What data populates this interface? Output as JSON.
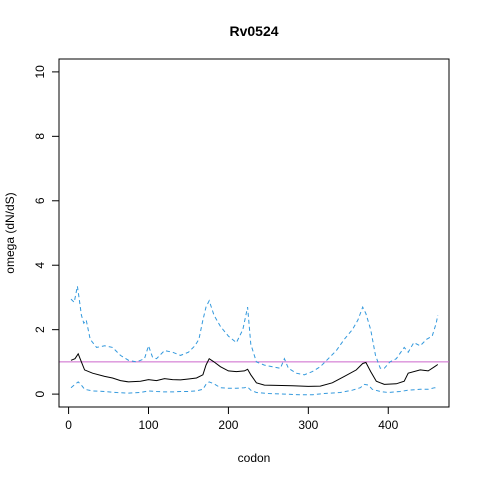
{
  "chart_data": {
    "type": "line",
    "title": "Rv0524",
    "xlabel": "codon",
    "ylabel": "omega (dN/dS)",
    "xlim": [
      -12,
      476
    ],
    "ylim": [
      -0.4,
      10.4
    ],
    "x_ticks": [
      0,
      100,
      200,
      300,
      400
    ],
    "y_ticks": [
      0,
      2,
      4,
      6,
      8,
      10
    ],
    "grid": false,
    "reference_line": {
      "y": 1,
      "color": "#cc66cc"
    },
    "series": [
      {
        "role": "omega",
        "color": "#000000",
        "dash": "solid",
        "points": [
          [
            3,
            1.05
          ],
          [
            8,
            1.1
          ],
          [
            12,
            1.25
          ],
          [
            16,
            1.0
          ],
          [
            20,
            0.75
          ],
          [
            30,
            0.65
          ],
          [
            45,
            0.55
          ],
          [
            55,
            0.5
          ],
          [
            65,
            0.42
          ],
          [
            75,
            0.38
          ],
          [
            90,
            0.4
          ],
          [
            100,
            0.45
          ],
          [
            110,
            0.42
          ],
          [
            120,
            0.48
          ],
          [
            130,
            0.45
          ],
          [
            140,
            0.44
          ],
          [
            150,
            0.47
          ],
          [
            160,
            0.5
          ],
          [
            168,
            0.6
          ],
          [
            172,
            0.9
          ],
          [
            176,
            1.1
          ],
          [
            182,
            1.0
          ],
          [
            190,
            0.85
          ],
          [
            200,
            0.72
          ],
          [
            210,
            0.7
          ],
          [
            220,
            0.72
          ],
          [
            224,
            0.77
          ],
          [
            228,
            0.6
          ],
          [
            235,
            0.35
          ],
          [
            245,
            0.28
          ],
          [
            260,
            0.27
          ],
          [
            280,
            0.26
          ],
          [
            300,
            0.24
          ],
          [
            315,
            0.25
          ],
          [
            330,
            0.35
          ],
          [
            345,
            0.55
          ],
          [
            360,
            0.75
          ],
          [
            368,
            0.95
          ],
          [
            372,
            0.98
          ],
          [
            378,
            0.7
          ],
          [
            385,
            0.4
          ],
          [
            395,
            0.3
          ],
          [
            410,
            0.32
          ],
          [
            420,
            0.4
          ],
          [
            425,
            0.65
          ],
          [
            440,
            0.75
          ],
          [
            450,
            0.72
          ],
          [
            458,
            0.85
          ],
          [
            462,
            0.92
          ]
        ]
      },
      {
        "role": "upper_bound",
        "color": "#3399dd",
        "dash": "dashed",
        "points": [
          [
            3,
            2.95
          ],
          [
            7,
            2.85
          ],
          [
            9,
            3.1
          ],
          [
            11,
            3.35
          ],
          [
            13,
            3.0
          ],
          [
            16,
            2.45
          ],
          [
            19,
            2.2
          ],
          [
            22,
            2.3
          ],
          [
            27,
            1.7
          ],
          [
            35,
            1.45
          ],
          [
            45,
            1.5
          ],
          [
            55,
            1.45
          ],
          [
            65,
            1.2
          ],
          [
            75,
            1.05
          ],
          [
            85,
            1.0
          ],
          [
            95,
            1.1
          ],
          [
            100,
            1.5
          ],
          [
            105,
            1.15
          ],
          [
            110,
            1.1
          ],
          [
            120,
            1.35
          ],
          [
            130,
            1.3
          ],
          [
            140,
            1.2
          ],
          [
            150,
            1.3
          ],
          [
            158,
            1.5
          ],
          [
            163,
            1.7
          ],
          [
            168,
            2.3
          ],
          [
            172,
            2.7
          ],
          [
            176,
            2.9
          ],
          [
            182,
            2.45
          ],
          [
            190,
            2.1
          ],
          [
            200,
            1.8
          ],
          [
            210,
            1.6
          ],
          [
            218,
            2.0
          ],
          [
            224,
            2.7
          ],
          [
            228,
            1.55
          ],
          [
            235,
            1.0
          ],
          [
            245,
            0.9
          ],
          [
            255,
            0.85
          ],
          [
            265,
            0.8
          ],
          [
            270,
            1.1
          ],
          [
            275,
            0.8
          ],
          [
            285,
            0.65
          ],
          [
            295,
            0.6
          ],
          [
            305,
            0.7
          ],
          [
            315,
            0.85
          ],
          [
            325,
            1.1
          ],
          [
            335,
            1.35
          ],
          [
            345,
            1.7
          ],
          [
            355,
            2.0
          ],
          [
            362,
            2.3
          ],
          [
            368,
            2.7
          ],
          [
            372,
            2.5
          ],
          [
            378,
            2.0
          ],
          [
            384,
            1.2
          ],
          [
            390,
            0.8
          ],
          [
            395,
            0.8
          ],
          [
            402,
            1.0
          ],
          [
            410,
            1.1
          ],
          [
            420,
            1.45
          ],
          [
            425,
            1.3
          ],
          [
            432,
            1.6
          ],
          [
            440,
            1.5
          ],
          [
            448,
            1.7
          ],
          [
            455,
            1.8
          ],
          [
            460,
            2.2
          ],
          [
            462,
            2.45
          ]
        ]
      },
      {
        "role": "lower_bound",
        "color": "#3399dd",
        "dash": "dashed",
        "points": [
          [
            3,
            0.2
          ],
          [
            8,
            0.3
          ],
          [
            12,
            0.38
          ],
          [
            16,
            0.28
          ],
          [
            20,
            0.15
          ],
          [
            30,
            0.1
          ],
          [
            45,
            0.08
          ],
          [
            60,
            0.05
          ],
          [
            75,
            0.03
          ],
          [
            90,
            0.05
          ],
          [
            100,
            0.1
          ],
          [
            110,
            0.08
          ],
          [
            120,
            0.07
          ],
          [
            130,
            0.07
          ],
          [
            140,
            0.08
          ],
          [
            150,
            0.08
          ],
          [
            160,
            0.1
          ],
          [
            168,
            0.15
          ],
          [
            172,
            0.3
          ],
          [
            176,
            0.38
          ],
          [
            182,
            0.32
          ],
          [
            190,
            0.2
          ],
          [
            200,
            0.18
          ],
          [
            210,
            0.18
          ],
          [
            220,
            0.2
          ],
          [
            224,
            0.22
          ],
          [
            228,
            0.12
          ],
          [
            235,
            0.05
          ],
          [
            250,
            0.02
          ],
          [
            270,
            0.0
          ],
          [
            290,
            -0.02
          ],
          [
            305,
            -0.02
          ],
          [
            320,
            0.02
          ],
          [
            340,
            0.05
          ],
          [
            355,
            0.12
          ],
          [
            365,
            0.2
          ],
          [
            370,
            0.3
          ],
          [
            375,
            0.28
          ],
          [
            380,
            0.15
          ],
          [
            390,
            0.08
          ],
          [
            400,
            0.05
          ],
          [
            415,
            0.08
          ],
          [
            425,
            0.12
          ],
          [
            440,
            0.15
          ],
          [
            450,
            0.15
          ],
          [
            458,
            0.2
          ],
          [
            462,
            0.18
          ]
        ]
      }
    ]
  }
}
